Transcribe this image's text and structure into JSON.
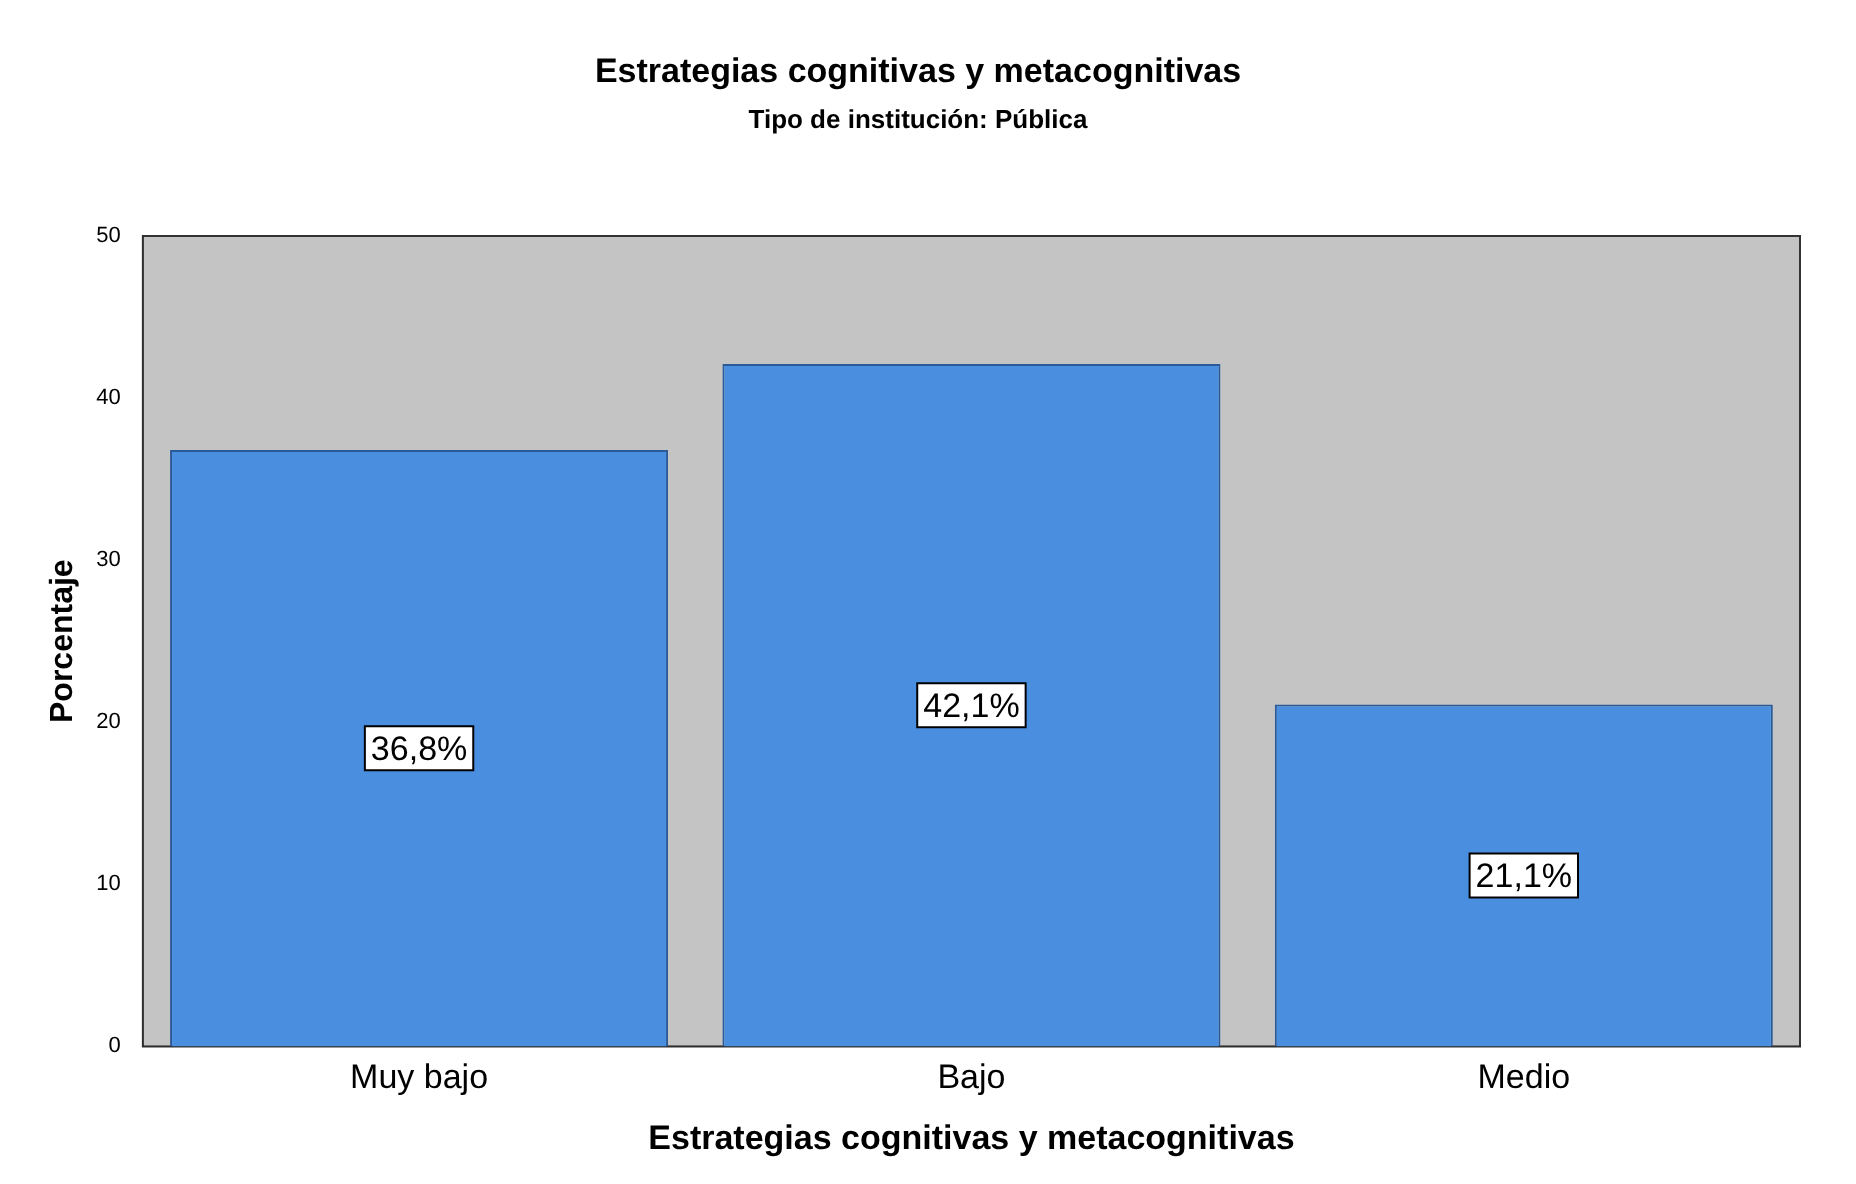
{
  "chart_data": {
    "type": "bar",
    "title": "Estrategias cognitivas y metacognitivas",
    "subtitle": "Tipo de institución: Pública",
    "xlabel": "Estrategias cognitivas y metacognitivas",
    "ylabel": "Porcentaje",
    "categories": [
      "Muy bajo",
      "Bajo",
      "Medio"
    ],
    "values": [
      36.8,
      42.1,
      21.1
    ],
    "value_labels": [
      "36,8%",
      "42,1%",
      "21,1%"
    ],
    "color": "#4a8ee0",
    "ylim": [
      0,
      50
    ],
    "yticks": [
      0,
      10,
      20,
      30,
      40,
      50
    ],
    "grid": false,
    "legend": false
  }
}
